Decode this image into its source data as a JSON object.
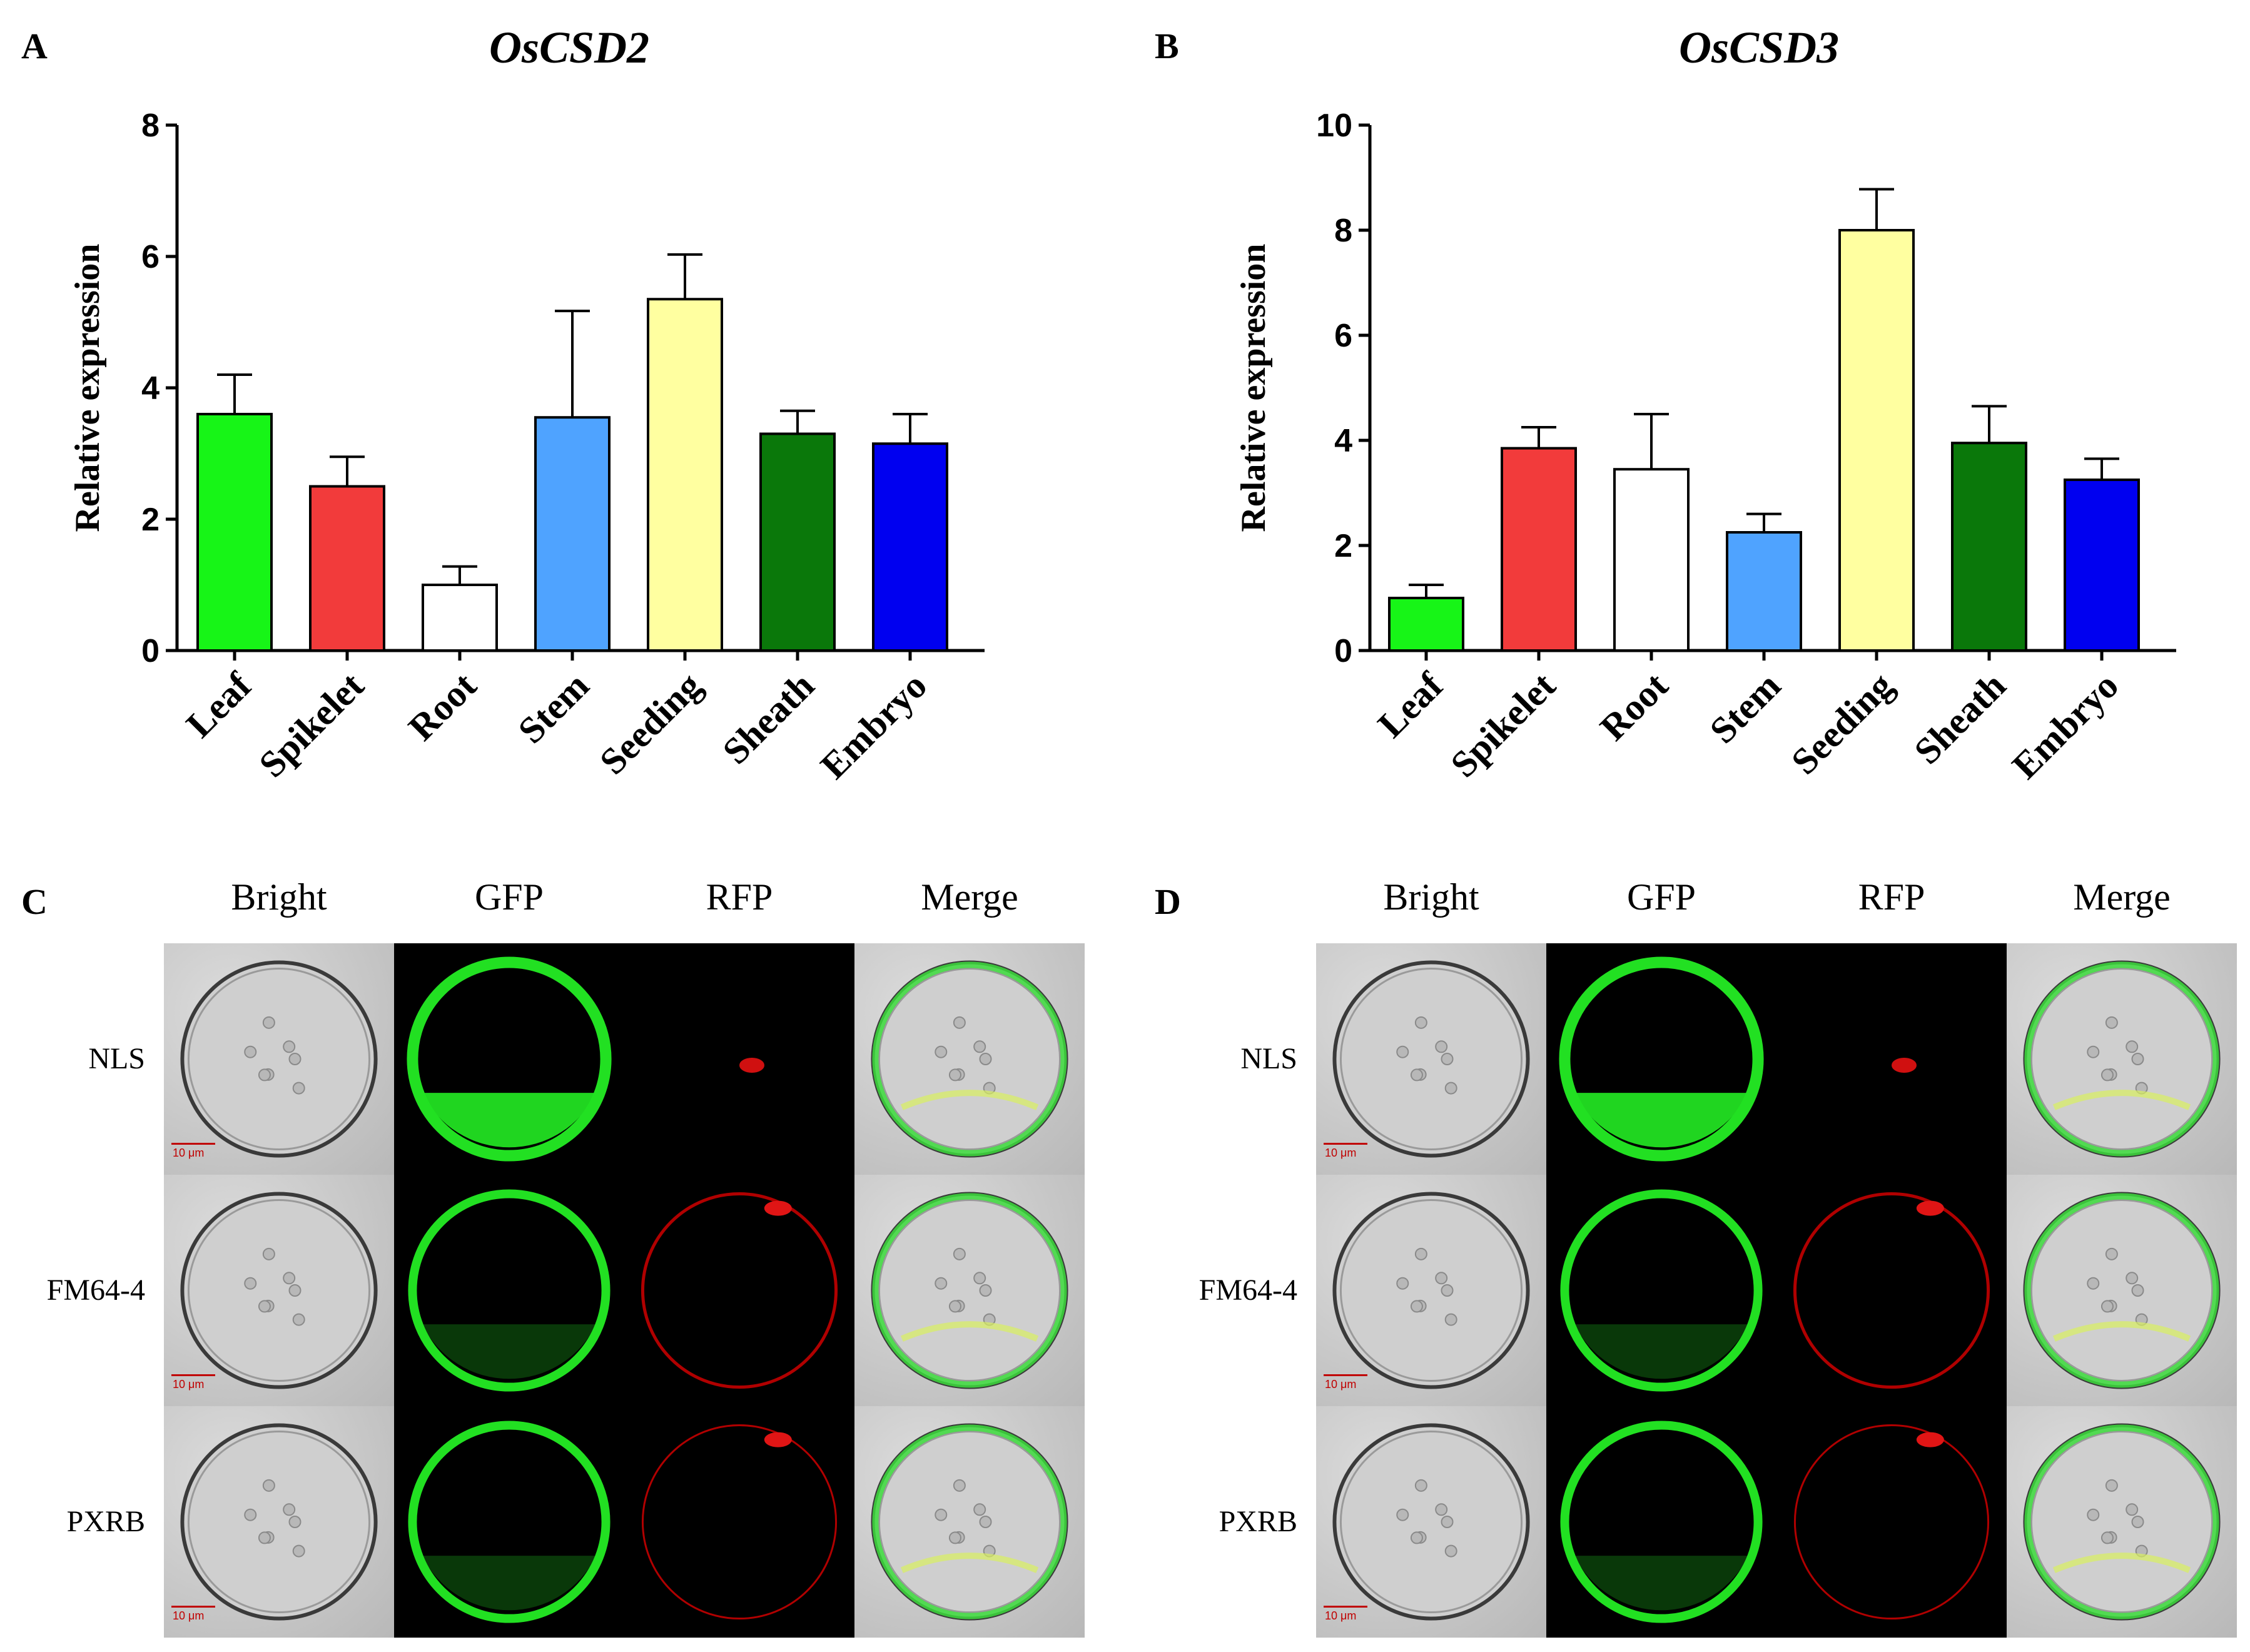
{
  "panels": {
    "A": "A",
    "B": "B",
    "C": "C",
    "D": "D"
  },
  "chart_data": [
    {
      "type": "bar",
      "title": "OsCSD2",
      "ylabel": "Relative expression",
      "xlabel": "",
      "ylim": [
        0,
        8
      ],
      "yticks": [
        0,
        2,
        4,
        6,
        8
      ],
      "categories": [
        "Leaf",
        "Spikelet",
        "Root",
        "Stem",
        "Seeding",
        "Sheath",
        "Embryo"
      ],
      "values": [
        3.6,
        2.5,
        1.0,
        3.55,
        5.35,
        3.3,
        3.15
      ],
      "errors": [
        0.6,
        0.45,
        0.28,
        1.62,
        0.68,
        0.35,
        0.45
      ],
      "colors": [
        "#17f517",
        "#f23b3b",
        "#ffffff",
        "#4fa3ff",
        "#ffffa0",
        "#0a780a",
        "#0000f0"
      ]
    },
    {
      "type": "bar",
      "title": "OsCSD3",
      "ylabel": "Relative expression",
      "xlabel": "",
      "ylim": [
        0,
        10
      ],
      "yticks": [
        0,
        2,
        4,
        6,
        8,
        10
      ],
      "categories": [
        "Leaf",
        "Spikelet",
        "Root",
        "Stem",
        "Seeding",
        "Sheath",
        "Embryo"
      ],
      "values": [
        1.0,
        3.85,
        3.45,
        2.25,
        8.0,
        3.95,
        3.25
      ],
      "errors": [
        0.25,
        0.4,
        1.05,
        0.35,
        0.78,
        0.7,
        0.4
      ],
      "colors": [
        "#17f517",
        "#f23b3b",
        "#ffffff",
        "#4fa3ff",
        "#ffffa0",
        "#0a780a",
        "#0000f0"
      ]
    }
  ],
  "microscopy": {
    "columns": [
      "Bright",
      "GFP",
      "RFP",
      "Merge"
    ],
    "rows": [
      "NLS",
      "FM64-4",
      "PXRB"
    ],
    "scale_label": "10 μm"
  }
}
